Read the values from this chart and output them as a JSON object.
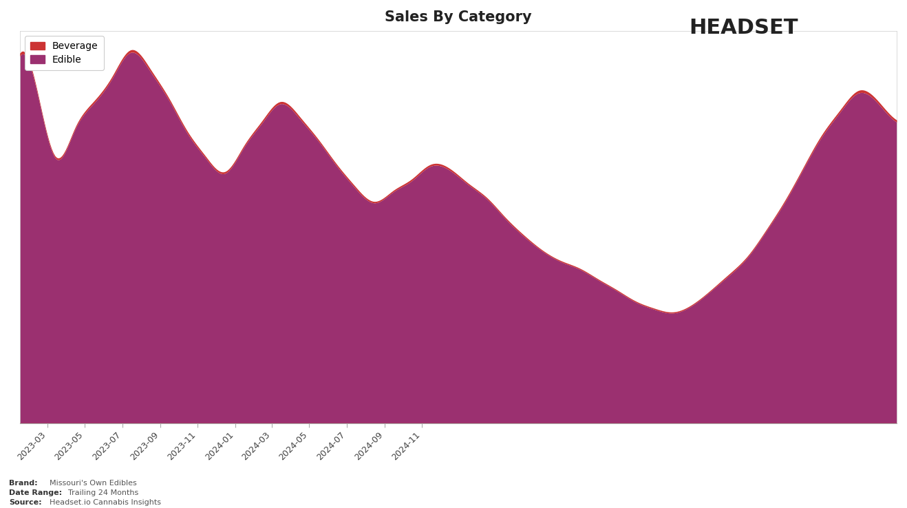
{
  "title": "Sales By Category",
  "title_fontsize": 15,
  "background_color": "#ffffff",
  "plot_bg_color": "#ffffff",
  "edible_color": "#9B3070",
  "beverage_color": "#CC3333",
  "legend_labels": [
    "Beverage",
    "Edible"
  ],
  "x_tick_labels": [
    "2023-03",
    "2023-05",
    "2023-07",
    "2023-09",
    "2023-11",
    "2024-01",
    "2024-03",
    "2024-05",
    "2024-07",
    "2024-09",
    "2024-11"
  ],
  "brand_label": "Brand:",
  "brand_value": "Missouri's Own Edibles",
  "date_range_label": "Date Range:",
  "date_range_value": "Trailing 24 Months",
  "source_label": "Source:",
  "source_value": "Headset.io Cannabis Insights",
  "monthly_edible": [
    1000,
    880,
    720,
    800,
    870,
    940,
    1010,
    960,
    880,
    790,
    720,
    680,
    750,
    820,
    870,
    830,
    770,
    700,
    640,
    600,
    630,
    660,
    700,
    690,
    650,
    610,
    560,
    510,
    470,
    440,
    420,
    390,
    360,
    330,
    310,
    300,
    320,
    360,
    400,
    450,
    520,
    600,
    690,
    780,
    850,
    900,
    870,
    820
  ],
  "monthly_beverage": [
    8,
    6,
    5,
    5,
    6,
    6,
    7,
    7,
    6,
    6,
    5,
    5,
    5,
    6,
    6,
    6,
    5,
    5,
    5,
    4,
    4,
    5,
    5,
    5,
    4,
    4,
    4,
    4,
    3,
    3,
    3,
    3,
    3,
    3,
    3,
    3,
    3,
    3,
    4,
    4,
    4,
    5,
    5,
    6,
    6,
    7,
    7,
    6
  ],
  "n_months": 48,
  "start_year": 2023,
  "start_month": 1
}
